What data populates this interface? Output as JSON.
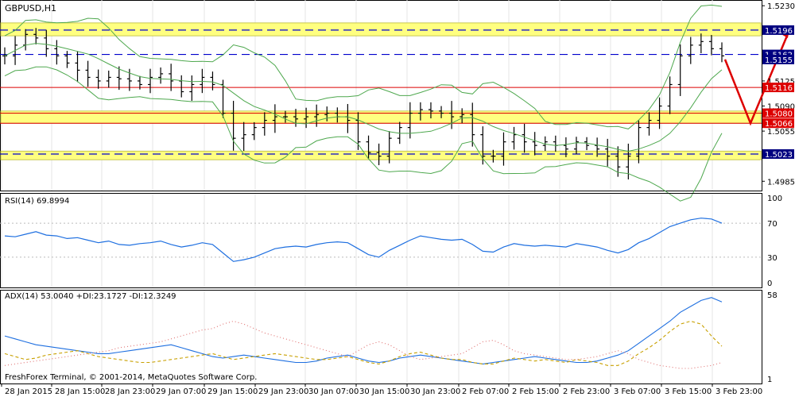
{
  "chart_data": [
    {
      "type": "ohlc",
      "title": "GBPUSD,H1",
      "yticks": [
        "1.5230",
        "1.5125",
        "1.5090",
        "1.5055",
        "1.4985"
      ],
      "ylim": [
        1.4972,
        1.5238
      ],
      "price_labels": [
        {
          "value": "1.5196",
          "color": "#0000cc"
        },
        {
          "value": "1.5162",
          "color": "#0000cc"
        },
        {
          "value": "1.5155",
          "color": "#0000cc"
        },
        {
          "value": "1.5116",
          "color": "#dd0000"
        },
        {
          "value": "1.5080",
          "color": "#dd0000"
        },
        {
          "value": "1.5066",
          "color": "#dd0000"
        },
        {
          "value": "1.5023",
          "color": "#0000cc"
        }
      ],
      "levels": {
        "blue_dashed": [
          1.5196,
          1.5162,
          1.5023
        ],
        "red_solid": [
          1.5116,
          1.508,
          1.5066
        ],
        "yellow_zones": [
          [
            1.5188,
            1.5206
          ],
          [
            1.5066,
            1.5083
          ],
          [
            1.5015,
            1.5027
          ]
        ]
      },
      "forecast_path": [
        [
          1.5155,
          1.5066
        ],
        [
          1.5066,
          1.5196
        ]
      ],
      "close_path": [
        1.516,
        1.5175,
        1.519,
        1.5185,
        1.517,
        1.516,
        1.515,
        1.514,
        1.513,
        1.5125,
        1.513,
        1.5128,
        1.5125,
        1.512,
        1.513,
        1.5135,
        1.5125,
        1.511,
        1.512,
        1.513,
        1.512,
        1.508,
        1.5045,
        1.505,
        1.506,
        1.507,
        1.5075,
        1.5075,
        1.5072,
        1.5075,
        1.5078,
        1.508,
        1.5075,
        1.507,
        1.504,
        1.5025,
        1.502,
        1.5045,
        1.506,
        1.508,
        1.5085,
        1.5083,
        1.508,
        1.5075,
        1.5078,
        1.505,
        1.502,
        1.502,
        1.504,
        1.505,
        1.504,
        1.5035,
        1.504,
        1.5035,
        1.503,
        1.504,
        1.5035,
        1.503,
        1.502,
        1.5005,
        1.502,
        1.506,
        1.507,
        1.509,
        1.512,
        1.516,
        1.5175,
        1.518,
        1.517,
        1.516
      ],
      "colors": {
        "bars": "#000000",
        "bollinger": "#4ea84e",
        "yellow": "#ffff80",
        "blue": "#0000cc",
        "red": "#dd0000",
        "price_box": "#000080"
      }
    },
    {
      "type": "line",
      "title": "RSI(14) 69.8994",
      "yticks": [
        "100",
        "70",
        "30",
        "0"
      ],
      "ylim": [
        0,
        100
      ],
      "levels": [
        70,
        30
      ],
      "values": [
        55,
        54,
        57,
        60,
        56,
        55,
        52,
        53,
        50,
        47,
        49,
        45,
        44,
        46,
        47,
        49,
        45,
        42,
        44,
        47,
        45,
        35,
        25,
        27,
        30,
        35,
        40,
        42,
        43,
        42,
        45,
        47,
        48,
        47,
        40,
        33,
        30,
        38,
        44,
        50,
        55,
        53,
        51,
        50,
        51,
        45,
        37,
        36,
        42,
        46,
        44,
        43,
        44,
        43,
        42,
        46,
        44,
        42,
        38,
        35,
        39,
        47,
        52,
        59,
        66,
        70,
        74,
        76,
        75,
        70
      ],
      "color": "#1e6fe0"
    },
    {
      "type": "line",
      "title": "ADX(14) 53.0040 +DI:23.1727 -DI:12.3249",
      "yticks": [
        "58",
        "1"
      ],
      "ylim": [
        1,
        58
      ],
      "series": [
        {
          "values": [
            30,
            28,
            26,
            24,
            23,
            22,
            21,
            20,
            19,
            18,
            18,
            19,
            20,
            21,
            22,
            23,
            24,
            22,
            20,
            18,
            16,
            15,
            16,
            17,
            16,
            15,
            14,
            13,
            12,
            12,
            13,
            15,
            16,
            17,
            15,
            13,
            12,
            13,
            15,
            16,
            17,
            16,
            15,
            14,
            13,
            12,
            11,
            12,
            13,
            14,
            15,
            16,
            15,
            14,
            13,
            12,
            12,
            13,
            15,
            17,
            20,
            25,
            30,
            35,
            40,
            46,
            50,
            54,
            56,
            53
          ],
          "color": "#1e6fe0",
          "style": "solid"
        },
        {
          "values": [
            18,
            16,
            14,
            15,
            17,
            18,
            19,
            20,
            18,
            16,
            15,
            14,
            13,
            12,
            12,
            13,
            14,
            15,
            16,
            17,
            18,
            16,
            14,
            15,
            16,
            17,
            18,
            17,
            16,
            15,
            14,
            14,
            15,
            16,
            14,
            12,
            11,
            13,
            16,
            18,
            19,
            17,
            15,
            14,
            14,
            12,
            11,
            11,
            13,
            15,
            14,
            13,
            14,
            13,
            12,
            14,
            13,
            12,
            10,
            10,
            13,
            18,
            22,
            27,
            33,
            38,
            40,
            38,
            30,
            23
          ],
          "color": "#c8a000",
          "style": "dashed"
        },
        {
          "values": [
            10,
            11,
            12,
            13,
            14,
            15,
            16,
            17,
            18,
            19,
            20,
            22,
            23,
            24,
            25,
            26,
            28,
            30,
            32,
            34,
            35,
            38,
            40,
            38,
            35,
            32,
            30,
            28,
            26,
            24,
            22,
            20,
            18,
            16,
            20,
            24,
            26,
            24,
            20,
            16,
            14,
            15,
            16,
            17,
            18,
            22,
            26,
            27,
            24,
            20,
            18,
            17,
            16,
            15,
            14,
            14,
            15,
            16,
            18,
            20,
            18,
            14,
            12,
            10,
            9,
            8,
            8,
            9,
            10,
            12
          ],
          "color": "#e07070",
          "style": "dotted"
        }
      ]
    }
  ],
  "x_labels": [
    "28 Jan 2015",
    "28 Jan 15:00",
    "28 Jan 23:00",
    "29 Jan 07:00",
    "29 Jan 15:00",
    "29 Jan 23:00",
    "30 Jan 07:00",
    "30 Jan 15:00",
    "30 Jan 23:00",
    "2 Feb 07:00",
    "2 Feb 15:00",
    "2 Feb 23:00",
    "3 Feb 07:00",
    "3 Feb 15:00",
    "3 Feb 23:00"
  ],
  "watermark": "FreshForex Terminal, © 2001-2014, MetaQuotes Software Corp.",
  "colors": {
    "grid": "#c8c8c8",
    "frame": "#000000",
    "text": "#000000"
  }
}
